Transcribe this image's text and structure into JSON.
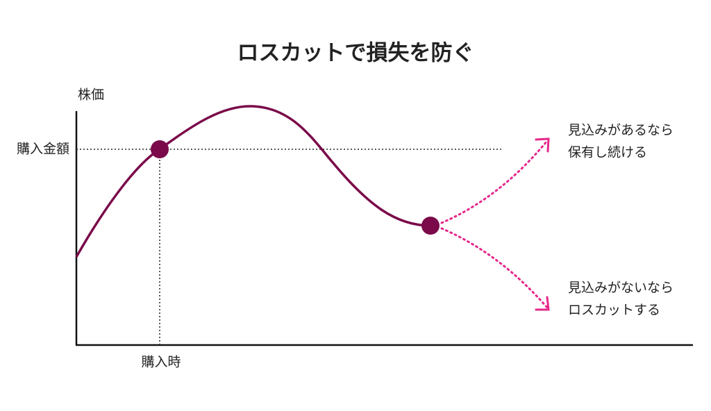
{
  "title": "ロスカットで損失を防ぐ",
  "y_axis_label": "株価",
  "purchase_price_label": "購入金額",
  "purchase_time_label": "購入時",
  "outcomes": [
    {
      "lines": [
        "見込みがあるなら",
        "保有し続ける"
      ]
    },
    {
      "lines": [
        "見込みがないなら",
        "ロスカットする"
      ]
    }
  ]
}
